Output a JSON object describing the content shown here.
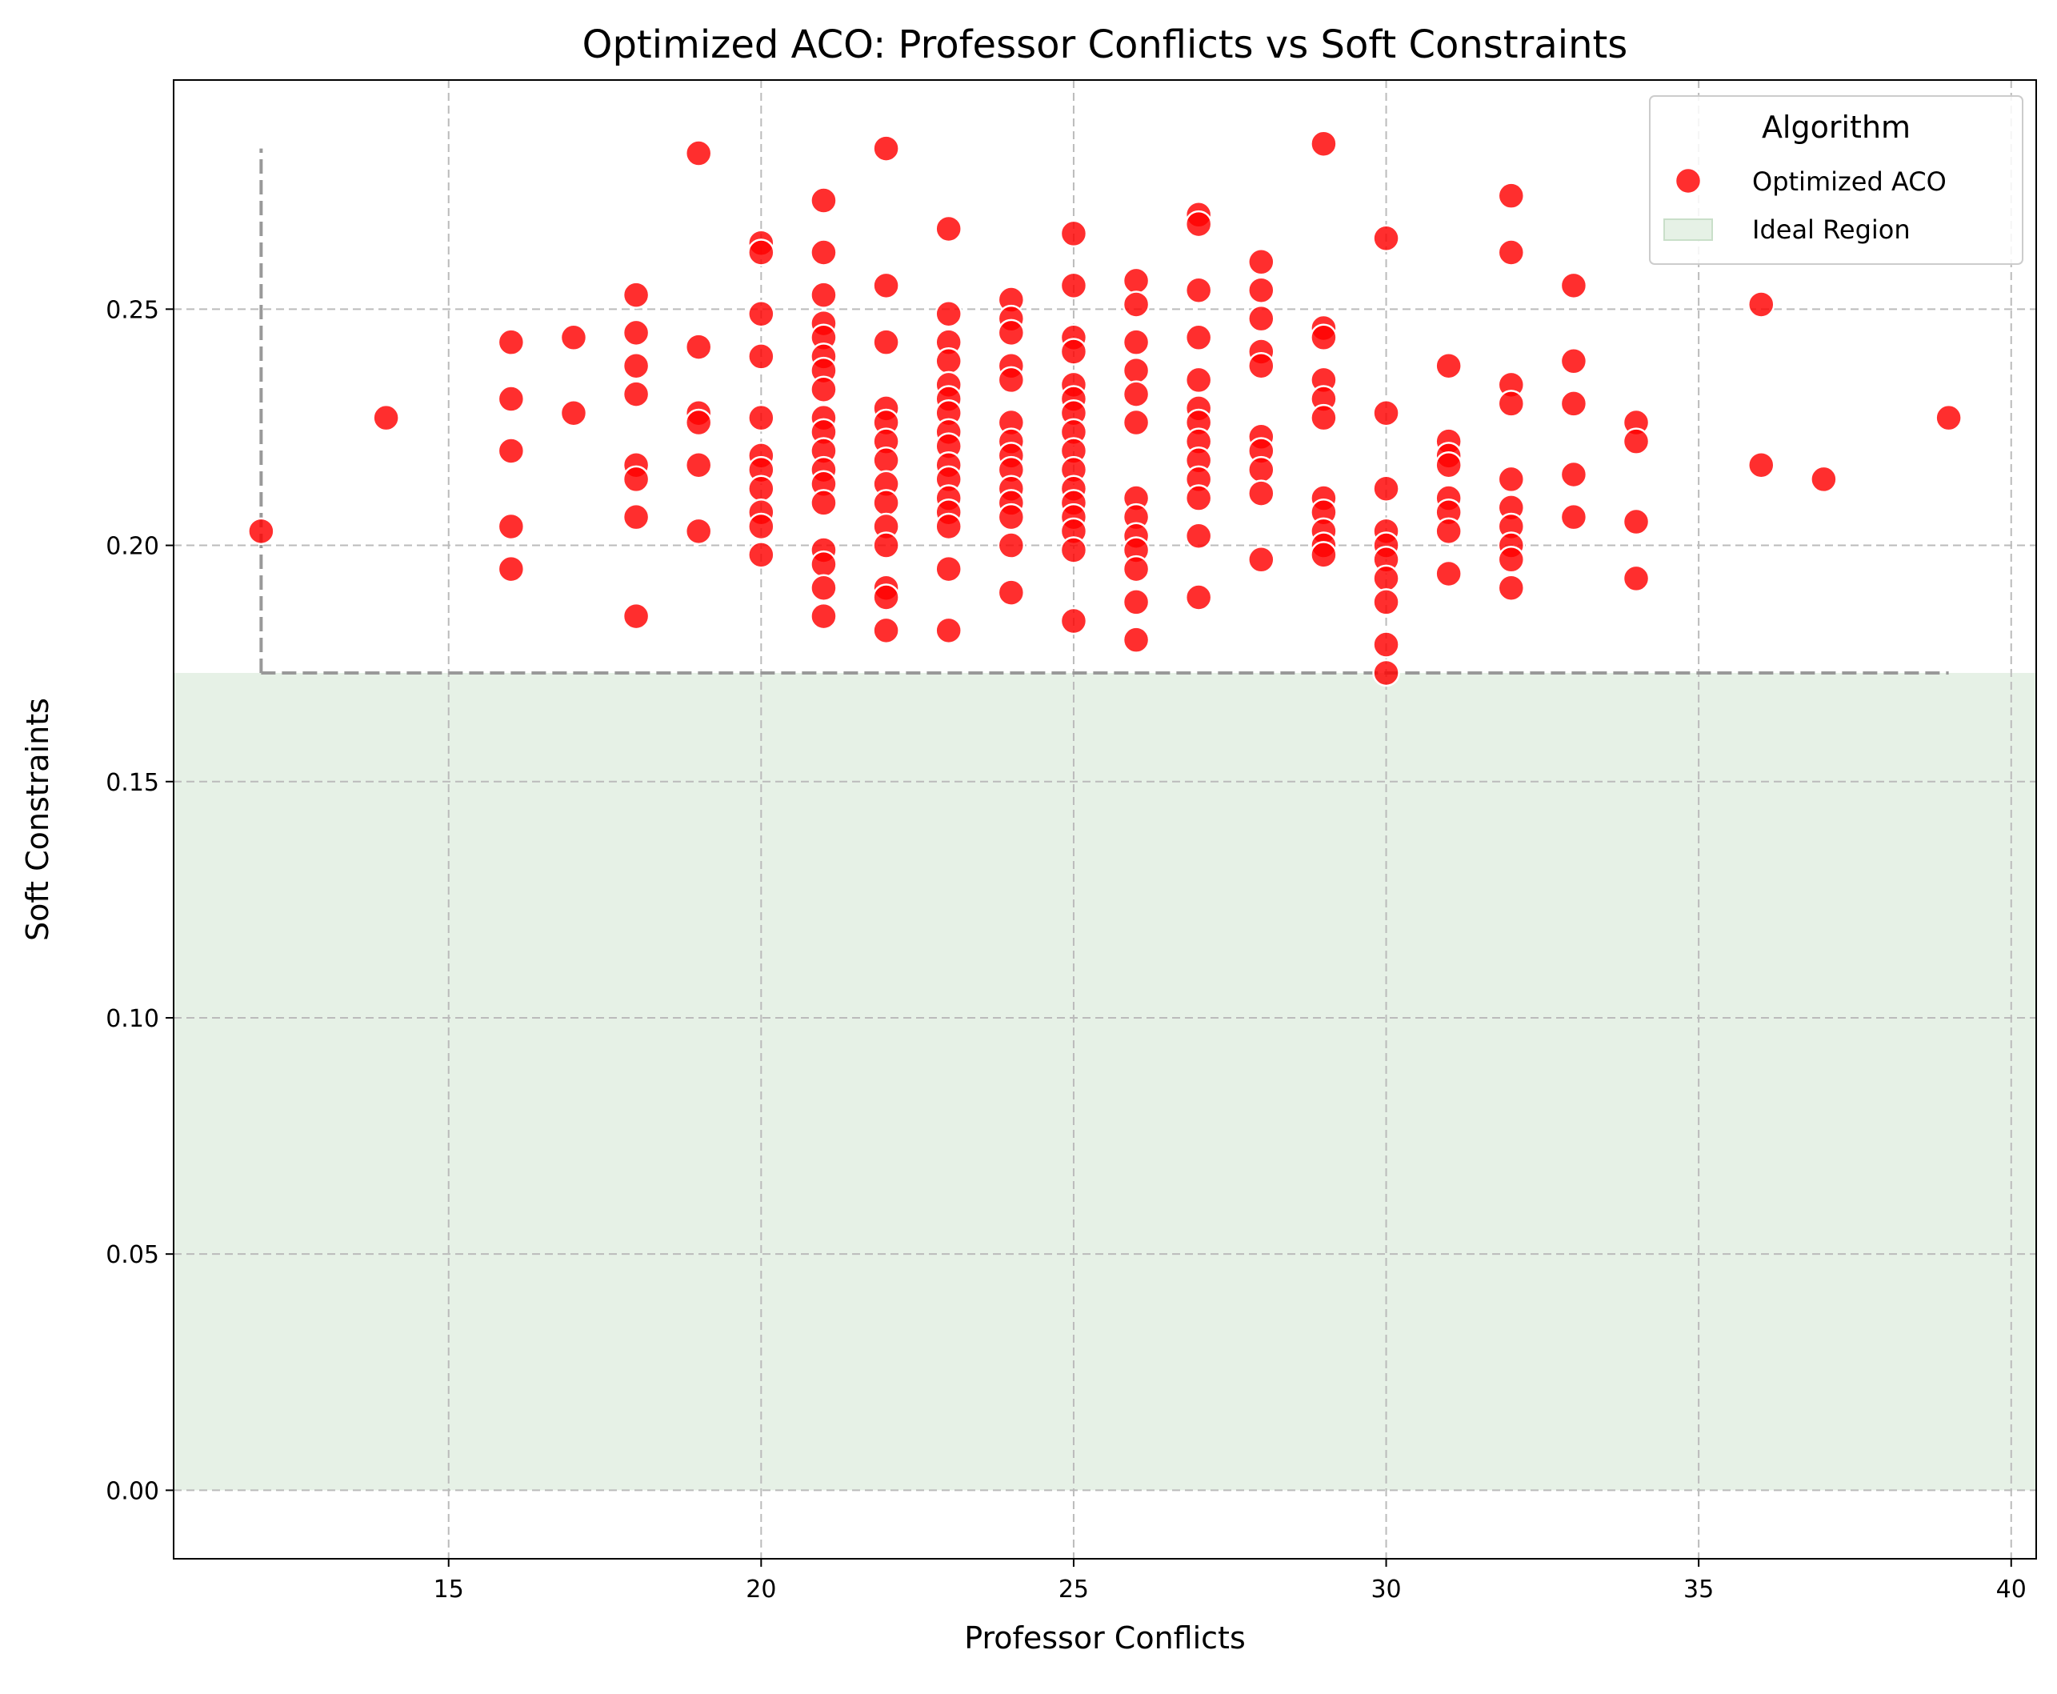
{
  "chart_data": {
    "type": "scatter",
    "title": "Optimized ACO: Professor Conflicts vs Soft Constraints",
    "xlabel": "Professor Conflicts",
    "ylabel": "Soft Constraints",
    "xlim": [
      10.6,
      40.4
    ],
    "ylim": [
      -0.0145,
      0.2985
    ],
    "xticks": [
      15,
      20,
      25,
      30,
      35,
      40
    ],
    "yticks": [
      0.0,
      0.05,
      0.1,
      0.15,
      0.2,
      0.25
    ],
    "xtick_labels": [
      "15",
      "20",
      "25",
      "30",
      "35",
      "40"
    ],
    "ytick_labels": [
      "0.00",
      "0.05",
      "0.10",
      "0.15",
      "0.20",
      "0.25"
    ],
    "grid": true,
    "legend": {
      "title": "Algorithm",
      "placement": "top-right",
      "entries": [
        "Optimized ACO",
        "Ideal Region"
      ]
    },
    "colors": {
      "points": "#ff0000",
      "point_edge": "#ffffff",
      "ideal_region": "#e6f1e6",
      "guide_line": "#999999",
      "grid": "#bbbbbb"
    },
    "ideal_region": {
      "x": [
        10.6,
        40.4
      ],
      "y": [
        0,
        0.173
      ]
    },
    "guide_lines": [
      {
        "x": [
          12,
          12
        ],
        "y": [
          0.173,
          0.284
        ]
      },
      {
        "x": [
          12,
          39
        ],
        "y": [
          0.173,
          0.173
        ]
      }
    ],
    "series": [
      {
        "name": "Optimized ACO",
        "points": [
          [
            12,
            0.203
          ],
          [
            14,
            0.227
          ],
          [
            16,
            0.243
          ],
          [
            16,
            0.231
          ],
          [
            16,
            0.22
          ],
          [
            16,
            0.204
          ],
          [
            16,
            0.195
          ],
          [
            17,
            0.244
          ],
          [
            17,
            0.228
          ],
          [
            18,
            0.253
          ],
          [
            18,
            0.245
          ],
          [
            18,
            0.238
          ],
          [
            18,
            0.232
          ],
          [
            18,
            0.217
          ],
          [
            18,
            0.214
          ],
          [
            18,
            0.206
          ],
          [
            18,
            0.185
          ],
          [
            19,
            0.283
          ],
          [
            19,
            0.242
          ],
          [
            19,
            0.228
          ],
          [
            19,
            0.226
          ],
          [
            19,
            0.217
          ],
          [
            19,
            0.203
          ],
          [
            20,
            0.264
          ],
          [
            20,
            0.262
          ],
          [
            20,
            0.249
          ],
          [
            20,
            0.24
          ],
          [
            20,
            0.227
          ],
          [
            20,
            0.219
          ],
          [
            20,
            0.216
          ],
          [
            20,
            0.212
          ],
          [
            20,
            0.207
          ],
          [
            20,
            0.204
          ],
          [
            20,
            0.198
          ],
          [
            21,
            0.273
          ],
          [
            21,
            0.262
          ],
          [
            21,
            0.253
          ],
          [
            21,
            0.247
          ],
          [
            21,
            0.244
          ],
          [
            21,
            0.24
          ],
          [
            21,
            0.237
          ],
          [
            21,
            0.233
          ],
          [
            21,
            0.227
          ],
          [
            21,
            0.224
          ],
          [
            21,
            0.22
          ],
          [
            21,
            0.216
          ],
          [
            21,
            0.213
          ],
          [
            21,
            0.209
          ],
          [
            21,
            0.199
          ],
          [
            21,
            0.196
          ],
          [
            21,
            0.191
          ],
          [
            21,
            0.185
          ],
          [
            22,
            0.284
          ],
          [
            22,
            0.255
          ],
          [
            22,
            0.243
          ],
          [
            22,
            0.229
          ],
          [
            22,
            0.226
          ],
          [
            22,
            0.222
          ],
          [
            22,
            0.218
          ],
          [
            22,
            0.213
          ],
          [
            22,
            0.209
          ],
          [
            22,
            0.204
          ],
          [
            22,
            0.2
          ],
          [
            22,
            0.191
          ],
          [
            22,
            0.189
          ],
          [
            22,
            0.182
          ],
          [
            23,
            0.267
          ],
          [
            23,
            0.249
          ],
          [
            23,
            0.243
          ],
          [
            23,
            0.239
          ],
          [
            23,
            0.234
          ],
          [
            23,
            0.231
          ],
          [
            23,
            0.228
          ],
          [
            23,
            0.224
          ],
          [
            23,
            0.221
          ],
          [
            23,
            0.217
          ],
          [
            23,
            0.214
          ],
          [
            23,
            0.21
          ],
          [
            23,
            0.207
          ],
          [
            23,
            0.204
          ],
          [
            23,
            0.195
          ],
          [
            23,
            0.182
          ],
          [
            24,
            0.252
          ],
          [
            24,
            0.248
          ],
          [
            24,
            0.245
          ],
          [
            24,
            0.238
          ],
          [
            24,
            0.235
          ],
          [
            24,
            0.226
          ],
          [
            24,
            0.222
          ],
          [
            24,
            0.219
          ],
          [
            24,
            0.216
          ],
          [
            24,
            0.212
          ],
          [
            24,
            0.209
          ],
          [
            24,
            0.206
          ],
          [
            24,
            0.2
          ],
          [
            24,
            0.19
          ],
          [
            25,
            0.266
          ],
          [
            25,
            0.255
          ],
          [
            25,
            0.244
          ],
          [
            25,
            0.241
          ],
          [
            25,
            0.234
          ],
          [
            25,
            0.231
          ],
          [
            25,
            0.228
          ],
          [
            25,
            0.224
          ],
          [
            25,
            0.22
          ],
          [
            25,
            0.216
          ],
          [
            25,
            0.212
          ],
          [
            25,
            0.209
          ],
          [
            25,
            0.206
          ],
          [
            25,
            0.203
          ],
          [
            25,
            0.199
          ],
          [
            25,
            0.184
          ],
          [
            26,
            0.256
          ],
          [
            26,
            0.251
          ],
          [
            26,
            0.243
          ],
          [
            26,
            0.237
          ],
          [
            26,
            0.232
          ],
          [
            26,
            0.226
          ],
          [
            26,
            0.21
          ],
          [
            26,
            0.206
          ],
          [
            26,
            0.202
          ],
          [
            26,
            0.199
          ],
          [
            26,
            0.195
          ],
          [
            26,
            0.188
          ],
          [
            26,
            0.18
          ],
          [
            27,
            0.27
          ],
          [
            27,
            0.268
          ],
          [
            27,
            0.254
          ],
          [
            27,
            0.244
          ],
          [
            27,
            0.235
          ],
          [
            27,
            0.229
          ],
          [
            27,
            0.226
          ],
          [
            27,
            0.222
          ],
          [
            27,
            0.218
          ],
          [
            27,
            0.214
          ],
          [
            27,
            0.21
          ],
          [
            27,
            0.202
          ],
          [
            27,
            0.189
          ],
          [
            28,
            0.26
          ],
          [
            28,
            0.254
          ],
          [
            28,
            0.248
          ],
          [
            28,
            0.241
          ],
          [
            28,
            0.238
          ],
          [
            28,
            0.223
          ],
          [
            28,
            0.22
          ],
          [
            28,
            0.216
          ],
          [
            28,
            0.211
          ],
          [
            28,
            0.197
          ],
          [
            29,
            0.285
          ],
          [
            29,
            0.246
          ],
          [
            29,
            0.244
          ],
          [
            29,
            0.235
          ],
          [
            29,
            0.231
          ],
          [
            29,
            0.227
          ],
          [
            29,
            0.21
          ],
          [
            29,
            0.207
          ],
          [
            29,
            0.203
          ],
          [
            29,
            0.2
          ],
          [
            29,
            0.198
          ],
          [
            30,
            0.265
          ],
          [
            30,
            0.228
          ],
          [
            30,
            0.212
          ],
          [
            30,
            0.203
          ],
          [
            30,
            0.2
          ],
          [
            30,
            0.197
          ],
          [
            30,
            0.193
          ],
          [
            30,
            0.188
          ],
          [
            30,
            0.179
          ],
          [
            30,
            0.173
          ],
          [
            31,
            0.238
          ],
          [
            31,
            0.222
          ],
          [
            31,
            0.219
          ],
          [
            31,
            0.217
          ],
          [
            31,
            0.21
          ],
          [
            31,
            0.207
          ],
          [
            31,
            0.203
          ],
          [
            31,
            0.194
          ],
          [
            32,
            0.274
          ],
          [
            32,
            0.262
          ],
          [
            32,
            0.234
          ],
          [
            32,
            0.23
          ],
          [
            32,
            0.214
          ],
          [
            32,
            0.208
          ],
          [
            32,
            0.204
          ],
          [
            32,
            0.2
          ],
          [
            32,
            0.197
          ],
          [
            32,
            0.191
          ],
          [
            33,
            0.255
          ],
          [
            33,
            0.239
          ],
          [
            33,
            0.23
          ],
          [
            33,
            0.215
          ],
          [
            33,
            0.206
          ],
          [
            34,
            0.226
          ],
          [
            34,
            0.222
          ],
          [
            34,
            0.205
          ],
          [
            34,
            0.193
          ],
          [
            36,
            0.251
          ],
          [
            36,
            0.217
          ],
          [
            37,
            0.214
          ],
          [
            39,
            0.227
          ]
        ]
      }
    ]
  }
}
